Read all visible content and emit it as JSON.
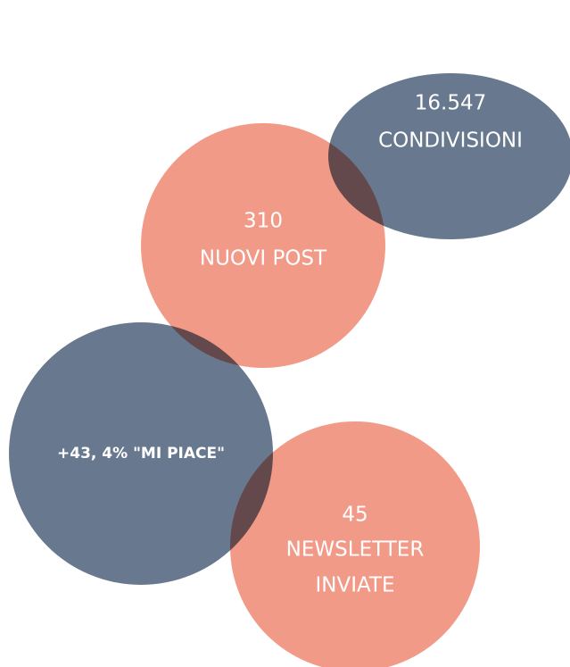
{
  "bubbles": [
    {
      "lines": [
        "16.547",
        "CONDIVISIONI"
      ]
    },
    {
      "lines": [
        "310",
        "NUOVI POST"
      ]
    },
    {
      "lines": [
        "+43, 4% \"MI PIACE\""
      ]
    },
    {
      "lines": [
        "45",
        "NEWSLETTER",
        "INVIATE"
      ]
    }
  ]
}
